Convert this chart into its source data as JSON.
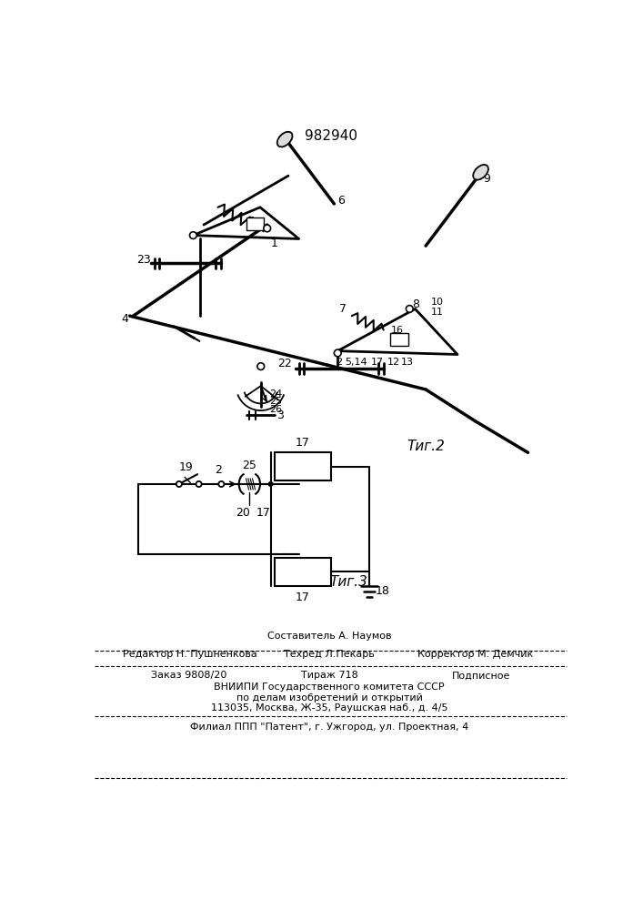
{
  "patent_number": "982940",
  "fig2_label": "Τиг.2",
  "fig3_label": "Τиг.3",
  "footer_composer": "Составитель А. Наумов",
  "footer_editor": "Редактор Н. Пушненкова",
  "footer_techred": "Техред Л.Пекарь",
  "footer_corrector": "Корректор М. Демчик",
  "footer_order": "Заказ 9808/20",
  "footer_tirazh": "Тираж 718",
  "footer_podp": "Подписное",
  "footer_vniip1": "ВНИИПИ Государственного комитета СССР",
  "footer_vniip2": "по делам изобретений и открытий",
  "footer_vniip3": "113035, Москва, Ж-35, Раушская наб., д. 4/5",
  "footer_filial": "Филиал ППП \"Патент\", г. Ужгород, ул. Проектная, 4",
  "bg_color": "#ffffff",
  "lc": "#000000"
}
